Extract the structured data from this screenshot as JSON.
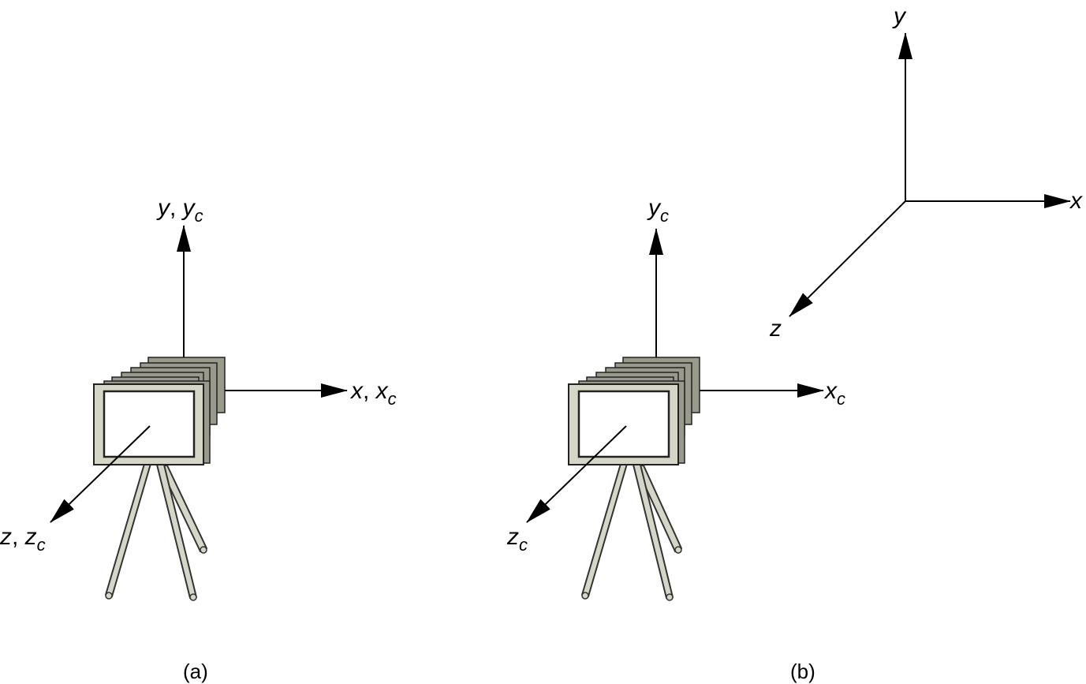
{
  "panel_a": {
    "label_y": "y",
    "label_yc_base": "y",
    "label_yc_sub": "c",
    "label_x": "x",
    "label_xc_base": "x",
    "label_xc_sub": "c",
    "label_z": "z",
    "label_zc_base": "z",
    "label_zc_sub": "c",
    "separator": ", ",
    "caption": "(a)"
  },
  "panel_b": {
    "label_yc_base": "y",
    "label_yc_sub": "c",
    "label_xc_base": "x",
    "label_xc_sub": "c",
    "label_zc_base": "z",
    "label_zc_sub": "c",
    "caption": "(b)"
  },
  "world_frame": {
    "label_x": "x",
    "label_y": "y",
    "label_z": "z"
  }
}
